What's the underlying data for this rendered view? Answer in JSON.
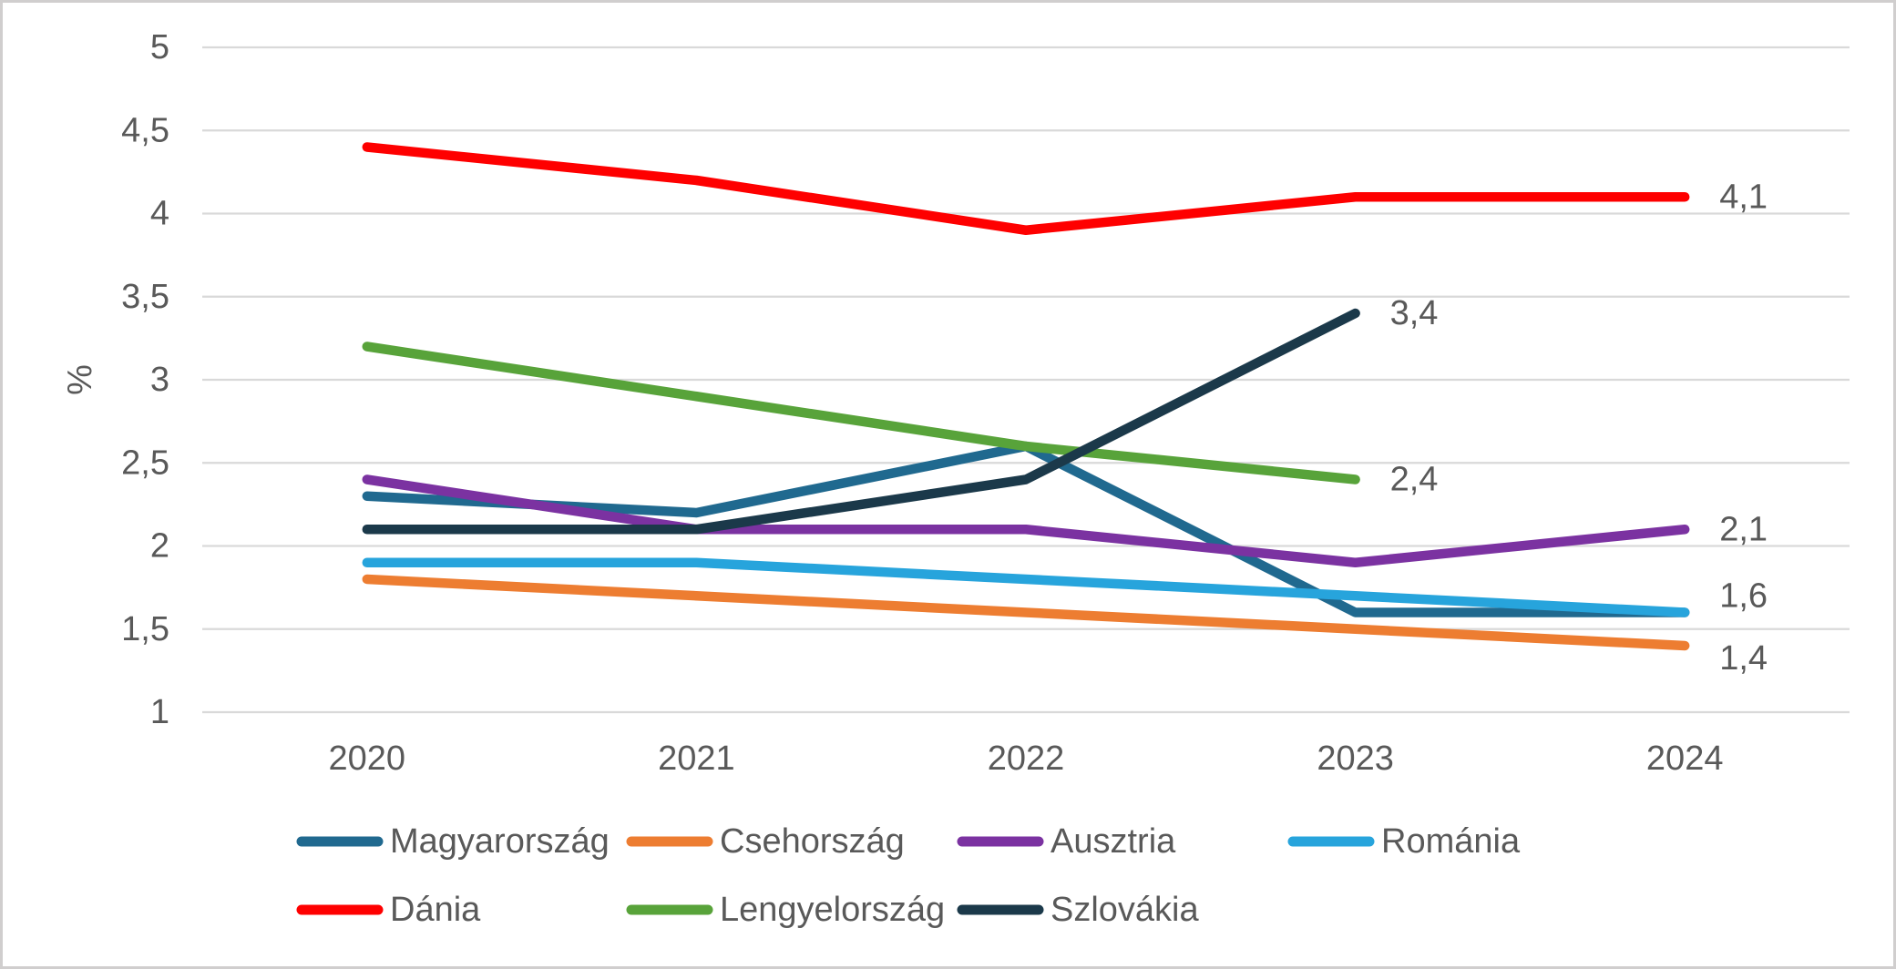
{
  "chart_data": {
    "type": "line",
    "title": "",
    "ylabel": "%",
    "xlabel": "",
    "grid": true,
    "legend_position": "bottom",
    "decimal_separator": ",",
    "categories": [
      "2020",
      "2021",
      "2022",
      "2023",
      "2024"
    ],
    "y_axis": {
      "min": 1,
      "max": 5,
      "step": 0.5,
      "ticks": [
        {
          "value": 5,
          "label": "5"
        },
        {
          "value": 4.5,
          "label": "4,5"
        },
        {
          "value": 4,
          "label": "4"
        },
        {
          "value": 3.5,
          "label": "3,5"
        },
        {
          "value": 3,
          "label": "3"
        },
        {
          "value": 2.5,
          "label": "2,5"
        },
        {
          "value": 2,
          "label": "2"
        },
        {
          "value": 1.5,
          "label": "1,5"
        },
        {
          "value": 1,
          "label": "1"
        }
      ]
    },
    "series": [
      {
        "name": "Magyarország",
        "color": "#20698F",
        "values": [
          2.3,
          2.2,
          2.6,
          1.6,
          1.6
        ],
        "end_label": null
      },
      {
        "name": "Csehország",
        "color": "#ED7D31",
        "values": [
          1.8,
          1.7,
          1.6,
          1.5,
          1.4
        ],
        "end_label": "1,4"
      },
      {
        "name": "Ausztria",
        "color": "#7B32A1",
        "values": [
          2.4,
          2.1,
          2.1,
          1.9,
          2.1
        ],
        "end_label": "2,1"
      },
      {
        "name": "Románia",
        "color": "#27A4DC",
        "values": [
          1.9,
          1.9,
          1.8,
          1.7,
          1.6
        ],
        "end_label": "1,6"
      },
      {
        "name": "Dánia",
        "color": "#FE0000",
        "values": [
          4.4,
          4.2,
          3.9,
          4.1,
          4.1
        ],
        "end_label": "4,1"
      },
      {
        "name": "Lengyelország",
        "color": "#58A33A",
        "values": [
          3.2,
          2.9,
          2.6,
          2.4,
          null
        ],
        "end_label": "2,4"
      },
      {
        "name": "Szlovákia",
        "color": "#1B394A",
        "values": [
          2.1,
          2.1,
          2.4,
          3.4,
          null
        ],
        "end_label": "3,4"
      }
    ],
    "colors": {
      "gridline": "#D9D9D9",
      "axis_text": "#595959",
      "frame_border": "#D0CECE",
      "background": "#FFFFFF"
    }
  }
}
